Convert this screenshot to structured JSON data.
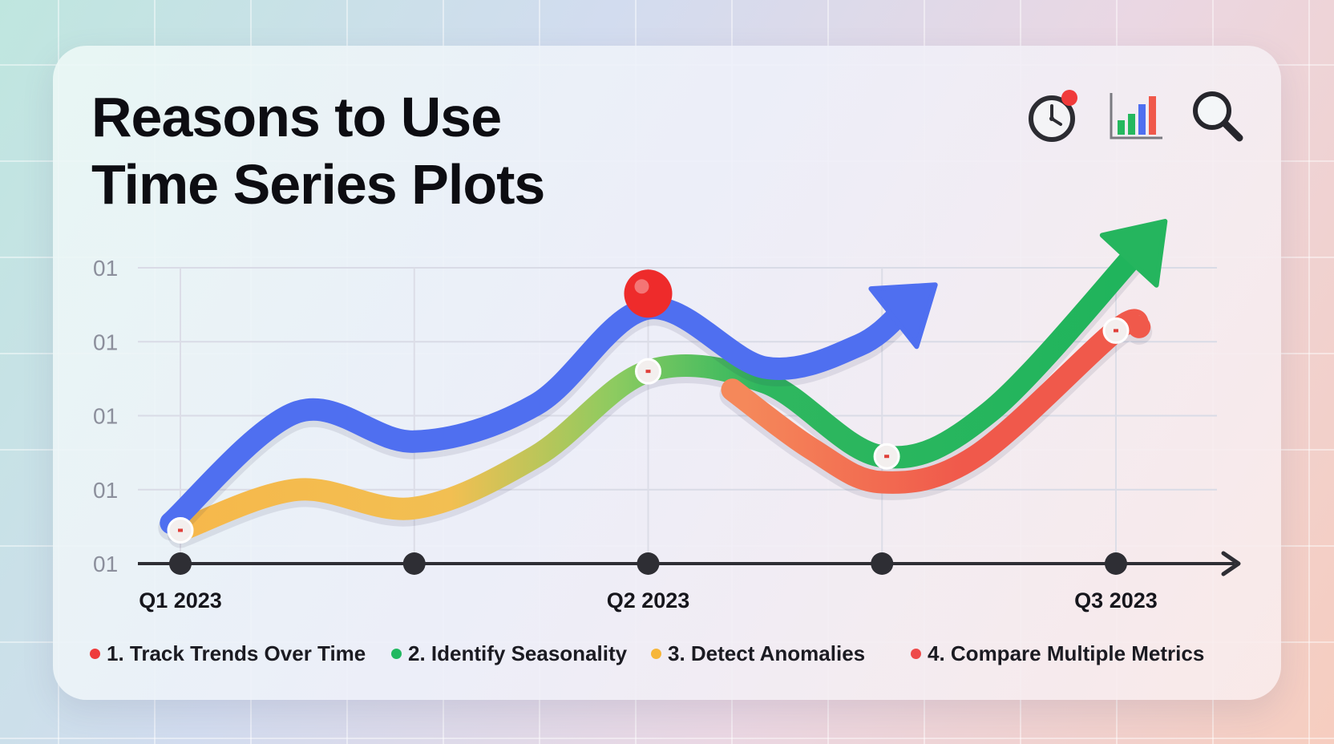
{
  "header": {
    "title_line1": "Reasons to Use",
    "title_line2": "Time Series Plots",
    "icons": [
      "clock-alert-icon",
      "bar-chart-icon",
      "magnifier-icon"
    ]
  },
  "chart_data": {
    "type": "line",
    "title": "Reasons to Use Time Series Plots",
    "xlabel": "",
    "ylabel": "",
    "y_tick_labels": [
      "01",
      "01",
      "01",
      "01",
      "01"
    ],
    "x_tick_labels": [
      "Q1 2023",
      "",
      "Q2 2023",
      "",
      "Q3 2023"
    ],
    "x": [
      0,
      0.5,
      1,
      1.5,
      2
    ],
    "xlim": [
      0,
      2.12
    ],
    "ylim": [
      0,
      4
    ],
    "grid": true,
    "legend_position": "bottom",
    "series": [
      {
        "key": "trend",
        "color": "#4f6ff0",
        "end_arrow": true,
        "points": [
          [
            -0.02,
            0.55
          ],
          [
            0.25,
            2.05
          ],
          [
            0.5,
            1.65
          ],
          [
            0.76,
            2.15
          ],
          [
            1.0,
            3.45
          ],
          [
            1.25,
            2.65
          ],
          [
            1.45,
            2.95
          ],
          [
            1.55,
            3.45
          ]
        ]
      },
      {
        "key": "seasonality",
        "color_start": "#f6b84b",
        "color_end": "#25b55e",
        "end_arrow": true,
        "points": [
          [
            0.0,
            0.45
          ],
          [
            0.25,
            1.0
          ],
          [
            0.5,
            0.75
          ],
          [
            0.76,
            1.45
          ],
          [
            1.0,
            2.6
          ],
          [
            1.25,
            2.45
          ],
          [
            1.5,
            1.45
          ],
          [
            1.73,
            2.05
          ],
          [
            2.05,
            4.25
          ]
        ]
      },
      {
        "key": "compare",
        "color": "#f0594b",
        "end_arrow": false,
        "points": [
          [
            1.18,
            2.35
          ],
          [
            1.35,
            1.55
          ],
          [
            1.5,
            1.1
          ],
          [
            1.7,
            1.45
          ],
          [
            2.0,
            3.15
          ],
          [
            2.05,
            3.2
          ]
        ]
      }
    ],
    "markers": [
      {
        "x": 0.0,
        "y": 0.45,
        "kind": "ring"
      },
      {
        "x": 1.0,
        "y": 2.6,
        "kind": "ring"
      },
      {
        "x": 1.51,
        "y": 1.45,
        "kind": "ring"
      },
      {
        "x": 2.0,
        "y": 3.15,
        "kind": "ring"
      },
      {
        "x": 1.0,
        "y": 3.65,
        "kind": "anomaly",
        "color": "#ee2b2b"
      }
    ],
    "legend": [
      {
        "label": "1. Track Trends Over Time",
        "color": "#ee3b3b"
      },
      {
        "label": "2. Identify Seasonality",
        "color": "#22b861"
      },
      {
        "label": "3. Detect Anomalies",
        "color": "#f6b63a"
      },
      {
        "label": "4. Compare Multiple Metrics",
        "color": "#ee4b4b"
      }
    ]
  }
}
